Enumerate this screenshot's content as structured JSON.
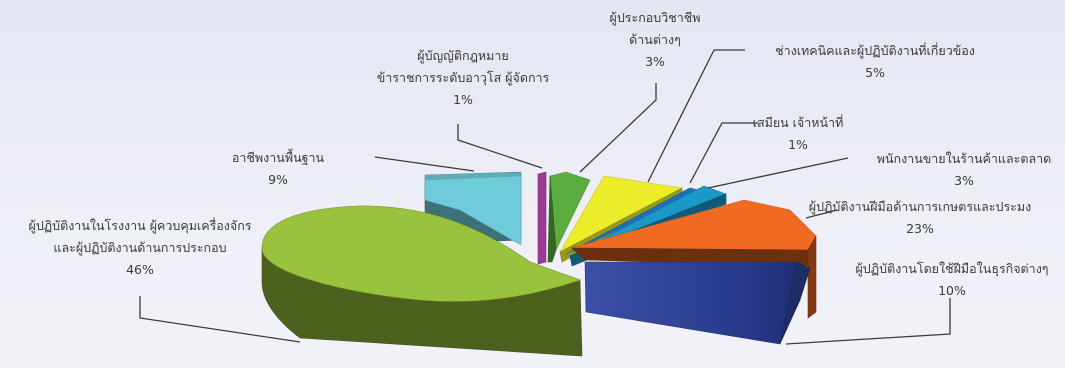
{
  "chart_data": {
    "type": "pie",
    "title": "",
    "style": "3d-exploded",
    "colors": {
      "factory_operators": "#99c23e",
      "elementary": "#6ecbd9",
      "legislators": "#9b3a95",
      "professionals": "#5aad3e",
      "technicians": "#ecec2a",
      "clerks": "#1d6fb8",
      "sales": "#1a98c8",
      "agriculture": "#f06a22",
      "craft": "#2c3f92"
    },
    "slices": [
      {
        "key": "elementary",
        "label_lines": [
          "อาชีพงานพื้นฐาน"
        ],
        "value_label": "9%",
        "value": 9
      },
      {
        "key": "legislators",
        "label_lines": [
          "ผู้บัญญัติกฎหมาย",
          "ข้าราชการระดับอาวุโส ผู้จัดการ"
        ],
        "value_label": "1%",
        "value": 1
      },
      {
        "key": "professionals",
        "label_lines": [
          "ผู้ประกอบวิชาชีพ",
          "ด้านต่างๆ"
        ],
        "value_label": "3%",
        "value": 3
      },
      {
        "key": "technicians",
        "label_lines": [
          "ช่างเทคนิคและผู้ปฏิบัติงานที่เกี่ยวข้อง"
        ],
        "value_label": "5%",
        "value": 5
      },
      {
        "key": "clerks",
        "label_lines": [
          "เสมียน เจ้าหน้าที่"
        ],
        "value_label": "1%",
        "value": 1
      },
      {
        "key": "sales",
        "label_lines": [
          "พนักงานขายในร้านค้าและตลาด"
        ],
        "value_label": "3%",
        "value": 3
      },
      {
        "key": "agriculture",
        "label_lines": [
          "ผู้ปฏิบัติงานฝีมือด้านการเกษตรและประมง"
        ],
        "value_label": "23%",
        "value": 23
      },
      {
        "key": "craft",
        "label_lines": [
          "ผู้ปฏิบัติงานโดยใช้ฝีมือในธุรกิจต่างๆ"
        ],
        "value_label": "10%",
        "value": 10
      },
      {
        "key": "factory_operators",
        "label_lines": [
          "ผู้ปฏิบัติงานในโรงงาน ผู้ควบคุมเครื่องจักร",
          "และผู้ปฏิบัติงานด้านการประกอบ"
        ],
        "value_label": "46%",
        "value": 46
      }
    ]
  }
}
